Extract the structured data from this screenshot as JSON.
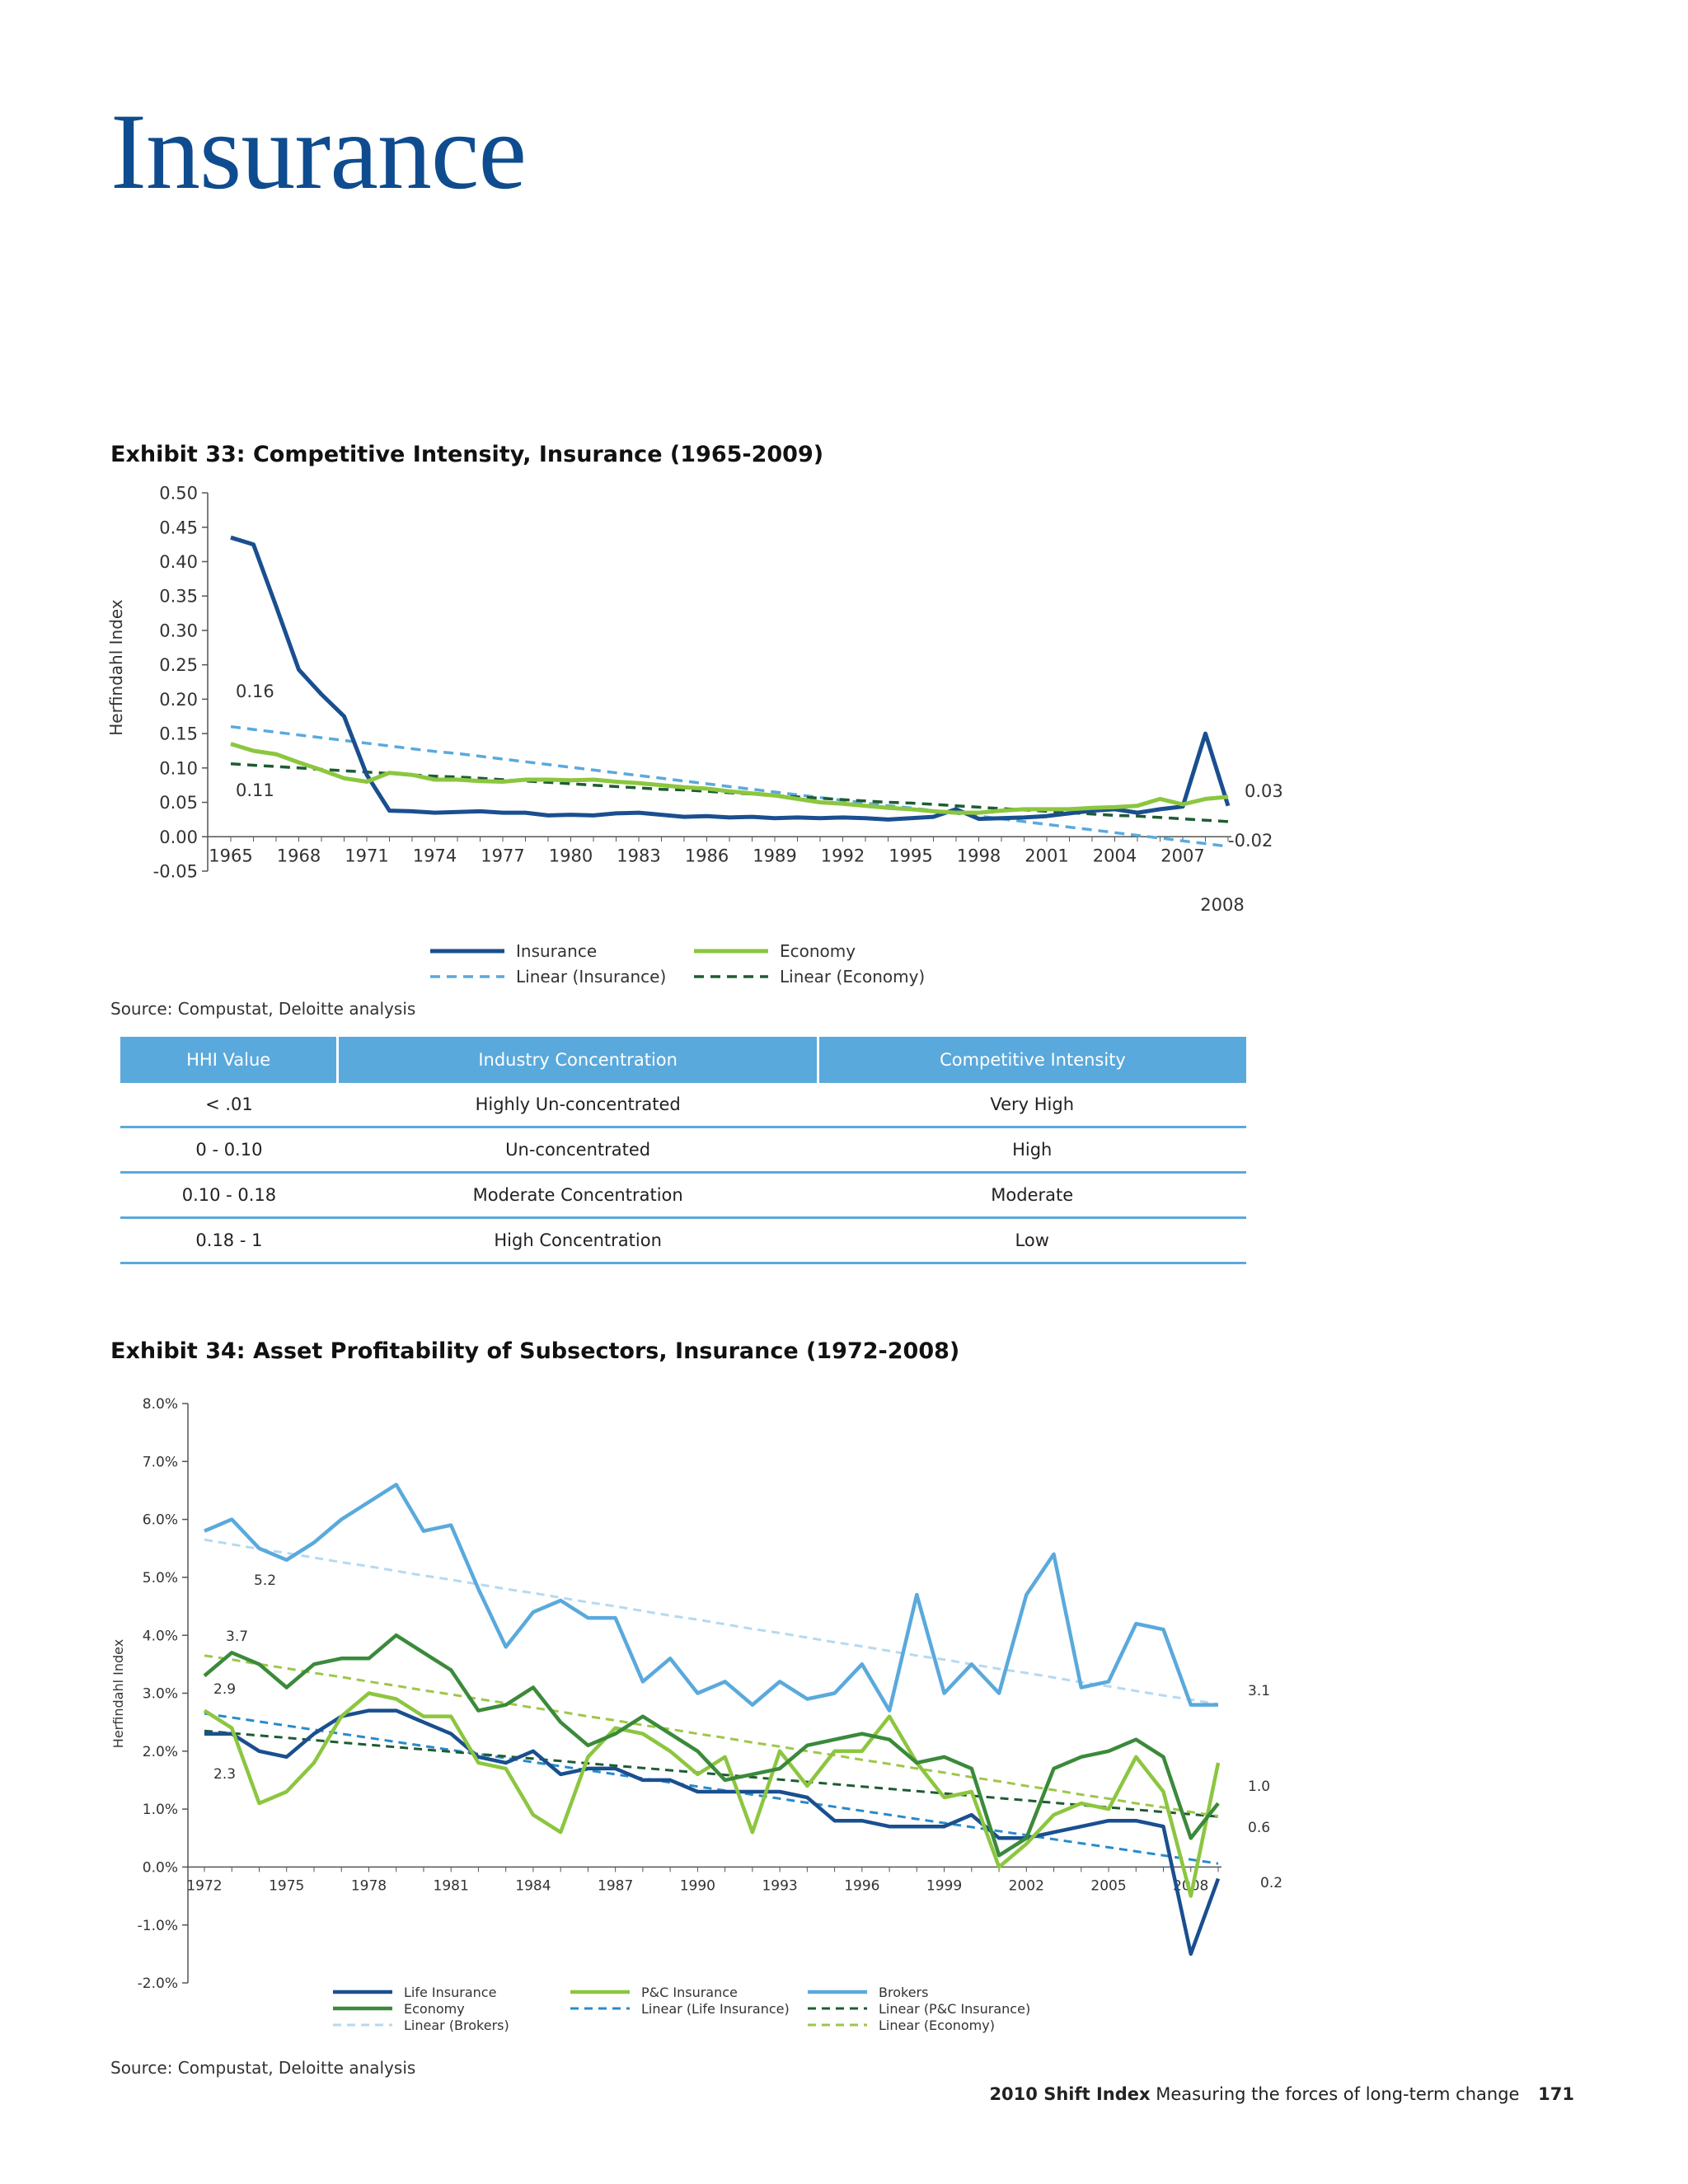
{
  "page": {
    "title": "Insurance",
    "footer": {
      "brand": "2010 Shift Index",
      "tagline": "Measuring the forces of long-term change",
      "page_number": "171"
    }
  },
  "exhibit33": {
    "title": "Exhibit 33: Competitive Intensity, Insurance (1965-2009)",
    "source": "Source: Compustat, Deloitte analysis"
  },
  "exhibit34": {
    "title": "Exhibit 34: Asset Profitability of Subsectors, Insurance (1972-2008)",
    "source": "Source: Compustat, Deloitte analysis"
  },
  "table": {
    "headers": [
      "HHI Value",
      "Industry Concentration",
      "Competitive Intensity"
    ],
    "rows": [
      [
        "< .01",
        "Highly Un-concentrated",
        "Very High"
      ],
      [
        "0 - 0.10",
        "Un-concentrated",
        "High"
      ],
      [
        "0.10 - 0.18",
        "Moderate Concentration",
        "Moderate"
      ],
      [
        "0.18 - 1",
        "High Concentration",
        "Low"
      ]
    ]
  },
  "chart_data": [
    {
      "type": "line",
      "ylabel": "Herfindahl Index",
      "ylim": [
        -0.05,
        0.5
      ],
      "yticks": [
        "0.50",
        "0.45",
        "0.40",
        "0.35",
        "0.30",
        "0.25",
        "0.20",
        "0.15",
        "0.10",
        "0.05",
        "0.00",
        "-0.05"
      ],
      "xticks": [
        "1965",
        "1968",
        "1971",
        "1974",
        "1977",
        "1980",
        "1983",
        "1986",
        "1989",
        "1992",
        "1995",
        "1998",
        "2001",
        "2004",
        "2007"
      ],
      "extra_xlabel": "2008",
      "x": [
        1965,
        1966,
        1967,
        1968,
        1969,
        1970,
        1971,
        1972,
        1973,
        1974,
        1975,
        1976,
        1977,
        1978,
        1979,
        1980,
        1981,
        1982,
        1983,
        1984,
        1985,
        1986,
        1987,
        1988,
        1989,
        1990,
        1991,
        1992,
        1993,
        1994,
        1995,
        1996,
        1997,
        1998,
        1999,
        2000,
        2001,
        2002,
        2003,
        2004,
        2005,
        2006,
        2007,
        2008,
        2009
      ],
      "series": [
        {
          "name": "Insurance",
          "color": "#1a4f8f",
          "dash": "solid",
          "values": [
            0.435,
            0.425,
            0.335,
            0.243,
            0.207,
            0.175,
            0.09,
            0.038,
            0.037,
            0.035,
            0.036,
            0.037,
            0.035,
            0.035,
            0.031,
            0.032,
            0.031,
            0.034,
            0.035,
            0.032,
            0.029,
            0.03,
            0.028,
            0.029,
            0.027,
            0.028,
            0.027,
            0.028,
            0.027,
            0.025,
            0.027,
            0.029,
            0.04,
            0.026,
            0.027,
            0.028,
            0.03,
            0.034,
            0.038,
            0.04,
            0.035,
            0.04,
            0.044,
            0.15,
            0.045
          ]
        },
        {
          "name": "Economy",
          "color": "#8cc63f",
          "dash": "solid",
          "values": [
            0.135,
            0.125,
            0.12,
            0.108,
            0.097,
            0.085,
            0.08,
            0.093,
            0.09,
            0.083,
            0.083,
            0.081,
            0.08,
            0.083,
            0.083,
            0.082,
            0.083,
            0.08,
            0.078,
            0.075,
            0.072,
            0.07,
            0.066,
            0.063,
            0.06,
            0.055,
            0.05,
            0.048,
            0.045,
            0.042,
            0.04,
            0.037,
            0.035,
            0.035,
            0.038,
            0.04,
            0.04,
            0.04,
            0.042,
            0.043,
            0.045,
            0.055,
            0.047,
            0.055,
            0.058
          ]
        },
        {
          "name": "Linear (Insurance)",
          "color": "#5aa9dc",
          "dash": "dashed",
          "values": [
            0.16,
            0.156,
            0.152,
            0.148,
            0.144,
            0.14,
            0.136,
            0.132,
            0.128,
            0.124,
            0.121,
            0.117,
            0.113,
            0.109,
            0.105,
            0.101,
            0.097,
            0.093,
            0.089,
            0.085,
            0.081,
            0.077,
            0.073,
            0.069,
            0.065,
            0.061,
            0.057,
            0.053,
            0.049,
            0.045,
            0.042,
            0.038,
            0.034,
            0.03,
            0.026,
            0.022,
            0.018,
            0.014,
            0.01,
            0.006,
            0.002,
            -0.002,
            -0.006,
            -0.01,
            -0.014
          ]
        },
        {
          "name": "Linear (Economy)",
          "color": "#1e5c32",
          "dash": "dashed",
          "values": [
            0.106,
            0.104,
            0.102,
            0.1,
            0.098,
            0.096,
            0.094,
            0.092,
            0.09,
            0.088,
            0.087,
            0.085,
            0.083,
            0.081,
            0.079,
            0.077,
            0.075,
            0.073,
            0.071,
            0.069,
            0.068,
            0.066,
            0.064,
            0.062,
            0.06,
            0.058,
            0.056,
            0.054,
            0.052,
            0.05,
            0.049,
            0.047,
            0.045,
            0.043,
            0.041,
            0.039,
            0.037,
            0.035,
            0.033,
            0.031,
            0.03,
            0.028,
            0.026,
            0.024,
            0.022
          ]
        }
      ],
      "annotations": [
        "0.16",
        "0.11",
        "0.03",
        "-0.02"
      ],
      "legend_position": "bottom"
    },
    {
      "type": "line",
      "ylabel": "Herfindahl Index",
      "ylim": [
        -2.0,
        8.0
      ],
      "yticks": [
        "8.0%",
        "7.0%",
        "6.0%",
        "5.0%",
        "4.0%",
        "3.0%",
        "2.0%",
        "1.0%",
        "0.0%",
        "-1.0%",
        "-2.0%"
      ],
      "xticks": [
        "1972",
        "1975",
        "1978",
        "1981",
        "1984",
        "1987",
        "1990",
        "1993",
        "1996",
        "1999",
        "2002",
        "2005",
        "2008"
      ],
      "x": [
        1972,
        1973,
        1974,
        1975,
        1976,
        1977,
        1978,
        1979,
        1980,
        1981,
        1982,
        1983,
        1984,
        1985,
        1986,
        1987,
        1988,
        1989,
        1990,
        1991,
        1992,
        1993,
        1994,
        1995,
        1996,
        1997,
        1998,
        1999,
        2000,
        2001,
        2002,
        2003,
        2004,
        2005,
        2006,
        2007,
        2008,
        2009
      ],
      "series": [
        {
          "name": "Life Insurance",
          "color": "#1a4f8f",
          "dash": "solid",
          "values": [
            2.3,
            2.3,
            2.0,
            1.9,
            2.3,
            2.6,
            2.7,
            2.7,
            2.5,
            2.3,
            1.9,
            1.8,
            2.0,
            1.6,
            1.7,
            1.7,
            1.5,
            1.5,
            1.3,
            1.3,
            1.3,
            1.3,
            1.2,
            0.8,
            0.8,
            0.7,
            0.7,
            0.7,
            0.9,
            0.5,
            0.5,
            0.6,
            0.7,
            0.8,
            0.8,
            0.7,
            -1.5,
            -0.2
          ]
        },
        {
          "name": "P&C Insurance",
          "color": "#8cc63f",
          "dash": "solid",
          "values": [
            2.7,
            2.4,
            1.1,
            1.3,
            1.8,
            2.6,
            3.0,
            2.9,
            2.6,
            2.6,
            1.8,
            1.7,
            0.9,
            0.6,
            1.9,
            2.4,
            2.3,
            2.0,
            1.6,
            1.9,
            0.6,
            2.0,
            1.4,
            2.0,
            2.0,
            2.6,
            1.8,
            1.2,
            1.3,
            0.0,
            0.4,
            0.9,
            1.1,
            1.0,
            1.9,
            1.3,
            -0.5,
            1.8
          ]
        },
        {
          "name": "Brokers",
          "color": "#5aa9dc",
          "dash": "solid",
          "values": [
            5.8,
            6.0,
            5.5,
            5.3,
            5.6,
            6.0,
            6.3,
            6.6,
            5.8,
            5.9,
            4.8,
            3.8,
            4.4,
            4.6,
            4.3,
            4.3,
            3.2,
            3.6,
            3.0,
            3.2,
            2.8,
            3.2,
            2.9,
            3.0,
            3.5,
            2.7,
            4.7,
            3.0,
            3.5,
            3.0,
            4.7,
            5.4,
            3.1,
            3.2,
            4.2,
            4.1,
            2.8,
            2.8
          ]
        },
        {
          "name": "Economy",
          "color": "#3a8a3a",
          "dash": "solid",
          "values": [
            3.3,
            3.7,
            3.5,
            3.1,
            3.5,
            3.6,
            3.6,
            4.0,
            3.7,
            3.4,
            2.7,
            2.8,
            3.1,
            2.5,
            2.1,
            2.3,
            2.6,
            2.3,
            2.0,
            1.5,
            1.6,
            1.7,
            2.1,
            2.2,
            2.3,
            2.2,
            1.8,
            1.9,
            1.7,
            0.2,
            0.5,
            1.7,
            1.9,
            2.0,
            2.2,
            1.9,
            0.5,
            1.1
          ]
        },
        {
          "name": "Linear (Life Insurance)",
          "color": "#2a8ac8",
          "dash": "dashed",
          "values": [
            2.65,
            2.58,
            2.51,
            2.44,
            2.37,
            2.3,
            2.23,
            2.16,
            2.09,
            2.02,
            1.95,
            1.88,
            1.81,
            1.74,
            1.67,
            1.6,
            1.53,
            1.46,
            1.39,
            1.32,
            1.25,
            1.18,
            1.11,
            1.04,
            0.97,
            0.9,
            0.83,
            0.76,
            0.69,
            0.62,
            0.55,
            0.48,
            0.41,
            0.34,
            0.27,
            0.2,
            0.13,
            0.06
          ]
        },
        {
          "name": "Linear (P&C Insurance)",
          "color": "#1e5c32",
          "dash": "dashed",
          "values": [
            2.35,
            2.31,
            2.27,
            2.23,
            2.19,
            2.15,
            2.11,
            2.07,
            2.03,
            1.99,
            1.95,
            1.91,
            1.87,
            1.83,
            1.79,
            1.75,
            1.71,
            1.67,
            1.63,
            1.59,
            1.55,
            1.51,
            1.47,
            1.43,
            1.39,
            1.35,
            1.31,
            1.27,
            1.23,
            1.19,
            1.15,
            1.11,
            1.07,
            1.03,
            0.99,
            0.95,
            0.91,
            0.87
          ]
        },
        {
          "name": "Linear (Brokers)",
          "color": "#b6d9ef",
          "dash": "dashed",
          "values": [
            5.65,
            5.57,
            5.49,
            5.42,
            5.34,
            5.26,
            5.19,
            5.11,
            5.03,
            4.96,
            4.88,
            4.8,
            4.73,
            4.65,
            4.57,
            4.5,
            4.42,
            4.34,
            4.27,
            4.19,
            4.11,
            4.04,
            3.96,
            3.88,
            3.81,
            3.73,
            3.65,
            3.58,
            3.5,
            3.42,
            3.35,
            3.27,
            3.19,
            3.12,
            3.04,
            2.96,
            2.89,
            2.81
          ]
        },
        {
          "name": "Linear (Economy)",
          "color": "#9ec64a",
          "dash": "dashed",
          "values": [
            3.65,
            3.58,
            3.5,
            3.43,
            3.35,
            3.28,
            3.2,
            3.13,
            3.05,
            2.98,
            2.9,
            2.83,
            2.75,
            2.68,
            2.6,
            2.53,
            2.45,
            2.38,
            2.3,
            2.23,
            2.15,
            2.08,
            2.0,
            1.93,
            1.85,
            1.78,
            1.7,
            1.63,
            1.55,
            1.48,
            1.4,
            1.33,
            1.25,
            1.18,
            1.1,
            1.03,
            0.95,
            0.88
          ]
        }
      ],
      "annotations": [
        "5.2",
        "3.7",
        "2.9",
        "2.3",
        "3.1",
        "1.0",
        "0.6",
        "0.2"
      ],
      "legend_position": "bottom"
    }
  ]
}
